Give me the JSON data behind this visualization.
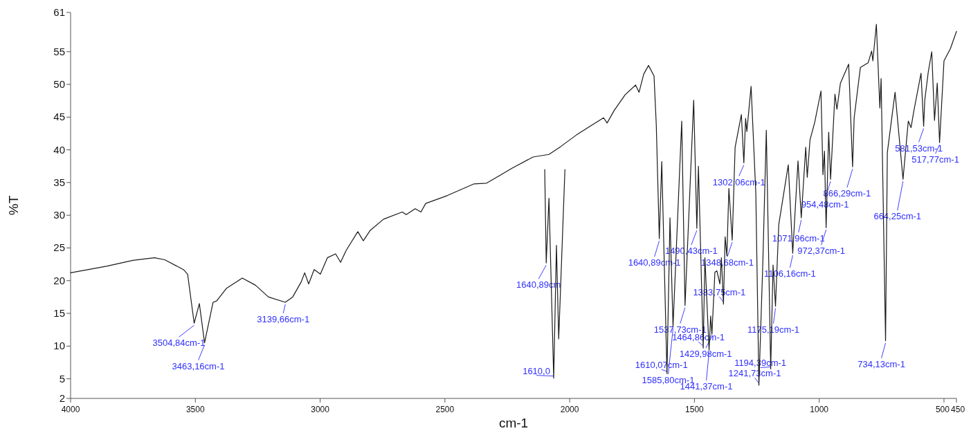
{
  "chart_data": {
    "type": "line",
    "xlabel": "cm-1",
    "ylabel": "%T",
    "xlim": [
      4000,
      450
    ],
    "ylim": [
      2,
      61
    ],
    "xticks": [
      4000,
      3500,
      3000,
      2500,
      2000,
      1500,
      1000,
      500,
      450
    ],
    "yticks": [
      2,
      5,
      10,
      15,
      20,
      25,
      30,
      35,
      40,
      45,
      50,
      55,
      61
    ],
    "grid": false,
    "marker": "none",
    "line_style": "solid",
    "series": [
      {
        "color": "#1a1a1a",
        "x": [
          4000,
          3856,
          3750,
          3664,
          3623,
          3548,
          3531,
          3504.84,
          3484,
          3463.16,
          3429,
          3415,
          3376,
          3312,
          3259,
          3207,
          3139.66,
          3110,
          3076,
          3062,
          3046,
          3024,
          2999,
          2971,
          2938,
          2918,
          2896,
          2849,
          2827,
          2799,
          2746,
          2671,
          2655,
          2619,
          2596,
          2577,
          2491,
          2383,
          2333,
          2230,
          2147,
          2083,
          2036,
          1972,
          1906,
          1864,
          1850,
          1822,
          1778,
          1736,
          1722,
          1703,
          1684,
          1662,
          1653,
          1640.89,
          1631,
          1610.07,
          1598,
          1585.8,
          1551,
          1537.73,
          1503,
          1490.43,
          1484,
          1464.86,
          1458,
          1441.37,
          1435,
          1429.98,
          1418,
          1410,
          1398,
          1392,
          1383.75,
          1377,
          1370,
          1362,
          1348.68,
          1337,
          1312,
          1302.06,
          1295,
          1290,
          1273,
          1254,
          1241.73,
          1226,
          1212,
          1194.39,
          1185,
          1175.19,
          1168,
          1162,
          1124,
          1106.16,
          1085,
          1071.96,
          1054,
          1048,
          1037,
          1018,
          993,
          985,
          979,
          972.37,
          962,
          954.48,
          937,
          929,
          915,
          882,
          866.29,
          860,
          835,
          804,
          790,
          785,
          771,
          757,
          752,
          734.13,
          727,
          696,
          664.25,
          643,
          632,
          621,
          592,
          581.53,
          577,
          563,
          549,
          538,
          527,
          517.77,
          500,
          474,
          450
        ],
        "values": [
          21.2,
          22.2,
          23.1,
          23.5,
          23.2,
          21.7,
          21.0,
          13.5,
          16.5,
          10.5,
          16.7,
          16.9,
          18.8,
          20.4,
          19.3,
          17.5,
          16.7,
          17.5,
          19.8,
          21.2,
          19.5,
          21.7,
          21.0,
          23.5,
          24.1,
          22.8,
          24.6,
          27.5,
          26.1,
          27.7,
          29.4,
          30.5,
          30.1,
          31.0,
          30.5,
          31.8,
          33.0,
          34.8,
          34.9,
          37.2,
          38.9,
          39.3,
          40.5,
          42.3,
          43.9,
          44.9,
          44.1,
          46.0,
          48.4,
          49.9,
          48.8,
          51.6,
          52.9,
          51.3,
          43.9,
          26.4,
          38.2,
          5.8,
          29.6,
          13.0,
          44.4,
          16.2,
          47.6,
          28.0,
          37.5,
          9.7,
          23.5,
          9.4,
          14.6,
          11.8,
          21.3,
          21.5,
          19.5,
          23.5,
          16.4,
          26.7,
          23.8,
          34.1,
          26.2,
          40.4,
          45.4,
          38.0,
          44.8,
          42.8,
          49.7,
          33.3,
          4.0,
          22.7,
          43.0,
          6.5,
          22.4,
          16.1,
          23.0,
          28.6,
          37.7,
          24.2,
          38.3,
          29.6,
          40.4,
          35.8,
          41.5,
          44.2,
          49.0,
          36.2,
          39.8,
          28.1,
          42.7,
          35.5,
          48.5,
          46.2,
          50.2,
          53.1,
          37.4,
          44.9,
          52.6,
          53.3,
          55.1,
          53.6,
          59.2,
          46.4,
          50.9,
          10.8,
          39.6,
          48.8,
          35.5,
          44.4,
          43.4,
          45.9,
          51.7,
          43.6,
          47.6,
          51.9,
          55.0,
          44.5,
          50.2,
          41.1,
          53.6,
          55.5,
          58.1
        ]
      },
      {
        "color": "#1a1a1a",
        "x": [
          2100,
          2094,
          2083,
          2064,
          2053,
          2044,
          2019
        ],
        "values": [
          37.0,
          22.7,
          32.6,
          5.1,
          25.4,
          11.1,
          37.0
        ]
      }
    ],
    "annotations": [
      {
        "text": "3504,84cm-1",
        "x": 3504.84,
        "y": 13.5
      },
      {
        "text": "3463,16cm-1",
        "x": 3463.16,
        "y": 10.5
      },
      {
        "text": "3139,66cm-1",
        "x": 3139.66,
        "y": 16.7
      },
      {
        "text": "1640,89cm-1",
        "x": 1640.89,
        "y": 26.4
      },
      {
        "text": "1610,07cm-1",
        "x": 1610.07,
        "y": 5.8
      },
      {
        "text": "1585,80cm-1",
        "x": 1585.8,
        "y": 13.0
      },
      {
        "text": "1537,73cm-1",
        "x": 1537.73,
        "y": 16.2
      },
      {
        "text": "1490,43cm-1",
        "x": 1490.43,
        "y": 28.0
      },
      {
        "text": "1464,86cm-1",
        "x": 1464.86,
        "y": 9.7
      },
      {
        "text": "1441,37cm-1",
        "x": 1441.37,
        "y": 9.4
      },
      {
        "text": "1429,98cm-1",
        "x": 1429.98,
        "y": 11.8
      },
      {
        "text": "1383,75cm-1",
        "x": 1383.75,
        "y": 16.4
      },
      {
        "text": "1348,68cm-1",
        "x": 1348.68,
        "y": 26.2
      },
      {
        "text": "1302,06cm-1",
        "x": 1302.06,
        "y": 38.0
      },
      {
        "text": "1241,73cm-1",
        "x": 1241.73,
        "y": 4.0
      },
      {
        "text": "1194,39cm-1",
        "x": 1194.39,
        "y": 6.5
      },
      {
        "text": "1175,19cm-1",
        "x": 1175.19,
        "y": 16.1
      },
      {
        "text": "1106,16cm-1",
        "x": 1106.16,
        "y": 24.2
      },
      {
        "text": "1071,96cm-1",
        "x": 1071.96,
        "y": 29.6
      },
      {
        "text": "972,37cm-1",
        "x": 972.37,
        "y": 28.1
      },
      {
        "text": "954,48cm-1",
        "x": 954.48,
        "y": 35.5
      },
      {
        "text": "866,29cm-1",
        "x": 866.29,
        "y": 37.4
      },
      {
        "text": "734,13cm-1",
        "x": 734.13,
        "y": 10.8
      },
      {
        "text": "664,25cm-1",
        "x": 664.25,
        "y": 35.5
      },
      {
        "text": "581,53cm-1",
        "x": 581.53,
        "y": 43.6
      },
      {
        "text": "517,77cm-1",
        "x": 517.77,
        "y": 41.1
      },
      {
        "text": "1640,89cm",
        "x": 2094,
        "y": 22.7
      },
      {
        "text": "1610,0",
        "x": 2064,
        "y": 5.1
      }
    ]
  }
}
